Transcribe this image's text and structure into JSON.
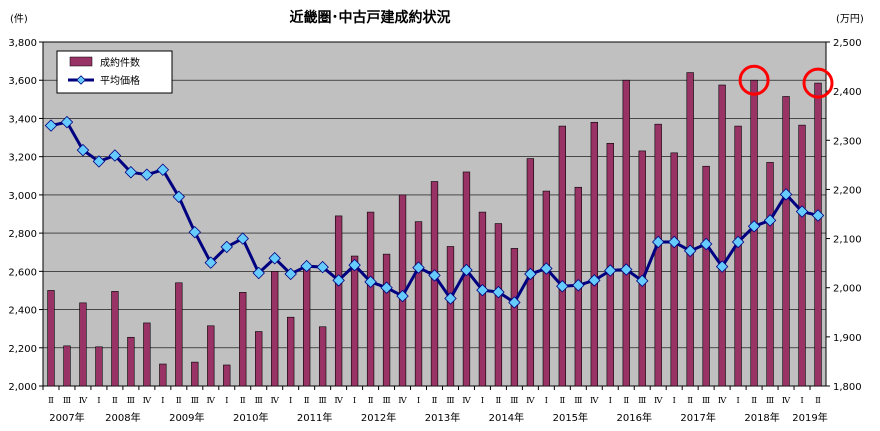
{
  "chart_data": {
    "type": "bar+line",
    "title": "近畿圏･中古戸建成約状況",
    "left_unit": "(件)",
    "right_unit": "(万円)",
    "ylim_left": [
      2000,
      3800
    ],
    "ylim_right": [
      1800,
      2500
    ],
    "yticks_left": [
      "2,000",
      "2,200",
      "2,400",
      "2,600",
      "2,800",
      "3,000",
      "3,200",
      "3,400",
      "3,600",
      "3,800"
    ],
    "yticks_right": [
      "1,800",
      "1,900",
      "2,000",
      "2,100",
      "2,200",
      "2,300",
      "2,400",
      "2,500"
    ],
    "legend_position": "top-left",
    "quarter_labels": [
      "Ⅱ",
      "Ⅲ",
      "Ⅳ",
      "Ⅰ",
      "Ⅱ",
      "Ⅲ",
      "Ⅳ",
      "Ⅰ",
      "Ⅱ",
      "Ⅲ",
      "Ⅳ",
      "Ⅰ",
      "Ⅱ",
      "Ⅲ",
      "Ⅳ",
      "Ⅰ",
      "Ⅱ",
      "Ⅲ",
      "Ⅳ",
      "Ⅰ",
      "Ⅱ",
      "Ⅲ",
      "Ⅳ",
      "Ⅰ",
      "Ⅱ",
      "Ⅲ",
      "Ⅳ",
      "Ⅰ",
      "Ⅱ",
      "Ⅲ",
      "Ⅳ",
      "Ⅰ",
      "Ⅱ",
      "Ⅲ",
      "Ⅳ",
      "Ⅰ",
      "Ⅱ",
      "Ⅲ",
      "Ⅳ",
      "Ⅰ",
      "Ⅱ",
      "Ⅲ",
      "Ⅳ",
      "Ⅰ",
      "Ⅱ",
      "Ⅲ",
      "Ⅳ",
      "Ⅰ",
      "Ⅱ"
    ],
    "year_labels": [
      {
        "label": "2007年",
        "from": 0,
        "to": 2
      },
      {
        "label": "2008年",
        "from": 3,
        "to": 6
      },
      {
        "label": "2009年",
        "from": 7,
        "to": 10
      },
      {
        "label": "2010年",
        "from": 11,
        "to": 14
      },
      {
        "label": "2011年",
        "from": 15,
        "to": 18
      },
      {
        "label": "2012年",
        "from": 19,
        "to": 22
      },
      {
        "label": "2013年",
        "from": 23,
        "to": 26
      },
      {
        "label": "2014年",
        "from": 27,
        "to": 30
      },
      {
        "label": "2015年",
        "from": 31,
        "to": 34
      },
      {
        "label": "2016年",
        "from": 35,
        "to": 38
      },
      {
        "label": "2017年",
        "from": 39,
        "to": 42
      },
      {
        "label": "2018年",
        "from": 43,
        "to": 46
      },
      {
        "label": "2019年",
        "from": 47,
        "to": 48
      }
    ],
    "series": [
      {
        "name": "成約件数",
        "axis": "left",
        "kind": "bar",
        "color": "#993366",
        "values": [
          2500,
          2210,
          2435,
          2205,
          2495,
          2255,
          2330,
          2115,
          2540,
          2125,
          2315,
          2110,
          2490,
          2285,
          2600,
          2360,
          2640,
          2310,
          2890,
          2680,
          2910,
          2690,
          3000,
          2860,
          3070,
          2730,
          3120,
          2910,
          2850,
          2720,
          3190,
          3020,
          3360,
          3040,
          3380,
          3270,
          3600,
          3230,
          3370,
          3220,
          3640,
          3150,
          3575,
          3360,
          3600,
          3170,
          3515,
          3365,
          3585
        ]
      },
      {
        "name": "平均価格",
        "axis": "right",
        "kind": "line",
        "color": "#000080",
        "marker_color": "#66CCFF",
        "values": [
          2330,
          2337,
          2280,
          2257,
          2269,
          2235,
          2230,
          2240,
          2185,
          2113,
          2051,
          2083,
          2100,
          2030,
          2060,
          2028,
          2044,
          2042,
          2015,
          2046,
          2012,
          2000,
          1983,
          2041,
          2025,
          1978,
          2036,
          1995,
          1991,
          1970,
          2028,
          2039,
          2003,
          2005,
          2015,
          2035,
          2037,
          2014,
          2093,
          2093,
          2075,
          2089,
          2043,
          2093,
          2125,
          2137,
          2190,
          2155,
          2147
        ]
      }
    ],
    "annotations": [
      {
        "shape": "circle",
        "color": "#FF0000",
        "at_index": 44
      },
      {
        "shape": "circle",
        "color": "#FF0000",
        "at_index": 48
      }
    ]
  }
}
